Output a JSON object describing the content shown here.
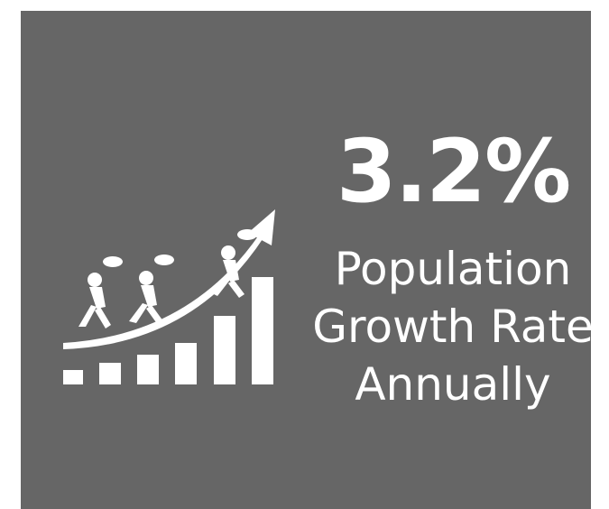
{
  "stat": {
    "value": "3.2%",
    "caption_lines": [
      "Population",
      "Growth Rate",
      "Annually"
    ]
  },
  "colors": {
    "background": "#666666",
    "foreground": "#ffffff"
  },
  "icons": [
    "bar-chart-icon",
    "growth-arrow-icon",
    "climbing-people-icon"
  ]
}
